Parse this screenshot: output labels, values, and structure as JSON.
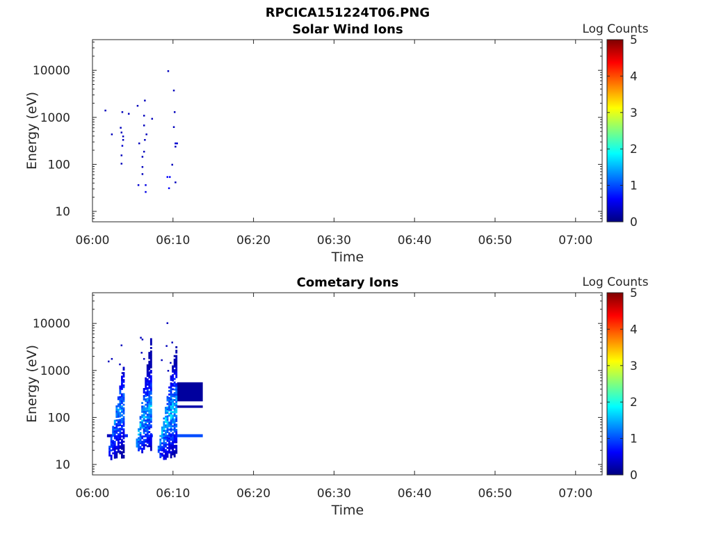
{
  "figure": {
    "title": "RPCICA151224T06.PNG"
  },
  "colorbar": {
    "label": "Log Counts",
    "ticks": [
      "0",
      "1",
      "2",
      "3",
      "4",
      "5"
    ],
    "range": [
      0,
      5
    ],
    "colormap": [
      "#00007f",
      "#0000ff",
      "#007fff",
      "#00ffff",
      "#7fff7f",
      "#ffff00",
      "#ff7f00",
      "#ff0000",
      "#7f0000"
    ]
  },
  "chart_data": [
    {
      "type": "heatmap",
      "title": "Solar Wind Ions",
      "xlabel": "Time",
      "ylabel": "Energy (eV)",
      "x_ticks": [
        "06:00",
        "06:10",
        "06:20",
        "06:30",
        "06:40",
        "06:50",
        "07:00"
      ],
      "x_tick_minutes": [
        0,
        10,
        20,
        30,
        40,
        50,
        60
      ],
      "xlim_minutes": [
        0,
        63.3
      ],
      "y_scale": "log",
      "y_ticks": [
        "10",
        "100",
        "1000",
        "10000"
      ],
      "y_tick_values": [
        10,
        100,
        1000,
        10000
      ],
      "ylim": [
        6,
        45000
      ],
      "cells": [
        {
          "t": 1.5,
          "e": 1350,
          "v": 0.3
        },
        {
          "t": 2.3,
          "e": 420,
          "v": 0.3
        },
        {
          "t": 3.4,
          "e": 580,
          "v": 0.3
        },
        {
          "t": 3.5,
          "e": 460,
          "v": 0.3
        },
        {
          "t": 3.6,
          "e": 1250,
          "v": 0.3
        },
        {
          "t": 3.7,
          "e": 380,
          "v": 0.3
        },
        {
          "t": 3.7,
          "e": 320,
          "v": 0.3
        },
        {
          "t": 3.6,
          "e": 240,
          "v": 0.4
        },
        {
          "t": 3.5,
          "e": 150,
          "v": 0.3
        },
        {
          "t": 3.5,
          "e": 100,
          "v": 0.3
        },
        {
          "t": 4.4,
          "e": 1150,
          "v": 0.3
        },
        {
          "t": 5.5,
          "e": 1700,
          "v": 0.3
        },
        {
          "t": 5.7,
          "e": 270,
          "v": 0.3
        },
        {
          "t": 5.6,
          "e": 35,
          "v": 0.4
        },
        {
          "t": 6.1,
          "e": 140,
          "v": 0.3
        },
        {
          "t": 6.1,
          "e": 85,
          "v": 0.3
        },
        {
          "t": 6.1,
          "e": 60,
          "v": 0.3
        },
        {
          "t": 6.4,
          "e": 2200,
          "v": 0.3
        },
        {
          "t": 6.3,
          "e": 1050,
          "v": 0.3
        },
        {
          "t": 6.3,
          "e": 650,
          "v": 0.3
        },
        {
          "t": 6.4,
          "e": 320,
          "v": 0.3
        },
        {
          "t": 6.3,
          "e": 180,
          "v": 0.3
        },
        {
          "t": 6.6,
          "e": 420,
          "v": 0.3
        },
        {
          "t": 6.5,
          "e": 35,
          "v": 0.5
        },
        {
          "t": 6.5,
          "e": 25,
          "v": 0.5
        },
        {
          "t": 7.3,
          "e": 900,
          "v": 0.3
        },
        {
          "t": 9.2,
          "e": 52,
          "v": 0.6
        },
        {
          "t": 9.5,
          "e": 52,
          "v": 0.6
        },
        {
          "t": 9.4,
          "e": 30,
          "v": 0.6
        },
        {
          "t": 9.3,
          "e": 9300,
          "v": 0.3
        },
        {
          "t": 9.8,
          "e": 95,
          "v": 0.3
        },
        {
          "t": 10.0,
          "e": 3600,
          "v": 0.3
        },
        {
          "t": 10.1,
          "e": 1250,
          "v": 0.3
        },
        {
          "t": 10.0,
          "e": 600,
          "v": 0.3
        },
        {
          "t": 10.2,
          "e": 270,
          "v": 0.4
        },
        {
          "t": 10.2,
          "e": 230,
          "v": 0.3
        },
        {
          "t": 10.4,
          "e": 270,
          "v": 0.4
        },
        {
          "t": 10.2,
          "e": 40,
          "v": 0.3
        }
      ]
    },
    {
      "type": "heatmap",
      "title": "Cometary Ions",
      "xlabel": "Time",
      "ylabel": "Energy (eV)",
      "x_ticks": [
        "06:00",
        "06:10",
        "06:20",
        "06:30",
        "06:40",
        "06:50",
        "07:00"
      ],
      "x_tick_minutes": [
        0,
        10,
        20,
        30,
        40,
        50,
        60
      ],
      "xlim_minutes": [
        0,
        63.3
      ],
      "y_scale": "log",
      "y_ticks": [
        "10",
        "100",
        "1000",
        "10000"
      ],
      "y_tick_values": [
        10,
        100,
        1000,
        10000
      ],
      "ylim": [
        6,
        45000
      ],
      "bursts": [
        {
          "t_start": 2.0,
          "t_end": 3.9,
          "e_low": 12,
          "e_high": 1600,
          "peak_e": 45,
          "peak_v": 1.5
        },
        {
          "t_start": 5.4,
          "t_end": 7.2,
          "e_low": 17,
          "e_high": 5000,
          "peak_e": 40,
          "peak_v": 1.7
        },
        {
          "t_start": 8.1,
          "t_end": 10.4,
          "e_low": 12,
          "e_high": 4000,
          "peak_e": 40,
          "peak_v": 1.8
        }
      ],
      "blocks": [
        {
          "t_start": 10.5,
          "t_end": 13.7,
          "e_low": 220,
          "e_high": 560,
          "v": 0.15
        },
        {
          "t_start": 10.5,
          "t_end": 13.7,
          "e_low": 160,
          "e_high": 180,
          "v": 0.2
        },
        {
          "t_start": 10.0,
          "t_end": 13.7,
          "e_low": 38,
          "e_high": 44,
          "v": 1.0
        },
        {
          "t_start": 1.8,
          "t_end": 2.5,
          "e_low": 38,
          "e_high": 44,
          "v": 0.3
        },
        {
          "t_start": 4.0,
          "t_end": 4.4,
          "e_low": 38,
          "e_high": 44,
          "v": 0.8
        },
        {
          "t_start": 7.1,
          "t_end": 7.5,
          "e_low": 38,
          "e_high": 44,
          "v": 0.9
        }
      ],
      "cells": [
        {
          "t": 1.9,
          "e": 1500,
          "v": 0.3
        },
        {
          "t": 2.3,
          "e": 1700,
          "v": 0.3
        },
        {
          "t": 3.5,
          "e": 3300,
          "v": 0.3
        },
        {
          "t": 3.3,
          "e": 1300,
          "v": 0.3
        },
        {
          "t": 3.6,
          "e": 850,
          "v": 0.3
        },
        {
          "t": 5.9,
          "e": 4800,
          "v": 0.3
        },
        {
          "t": 6.1,
          "e": 4400,
          "v": 0.3
        },
        {
          "t": 6.3,
          "e": 1700,
          "v": 0.3
        },
        {
          "t": 6.0,
          "e": 2300,
          "v": 0.3
        },
        {
          "t": 6.9,
          "e": 1000,
          "v": 0.3
        },
        {
          "t": 8.5,
          "e": 1600,
          "v": 0.3
        },
        {
          "t": 9.1,
          "e": 3200,
          "v": 0.3
        },
        {
          "t": 9.2,
          "e": 9800,
          "v": 0.3
        },
        {
          "t": 9.8,
          "e": 3800,
          "v": 0.3
        },
        {
          "t": 9.6,
          "e": 1400,
          "v": 0.3
        },
        {
          "t": 9.3,
          "e": 950,
          "v": 0.3
        }
      ]
    }
  ]
}
